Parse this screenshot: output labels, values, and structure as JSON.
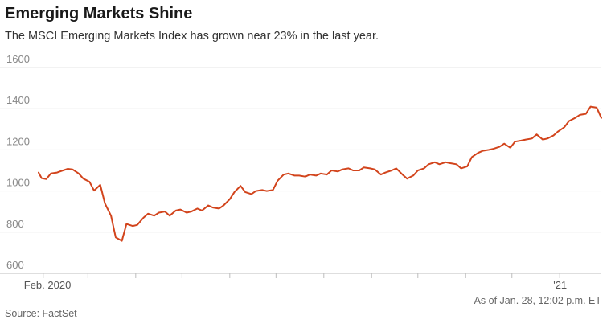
{
  "chart_data": {
    "type": "line",
    "title": "Emerging Markets Shine",
    "subtitle": "The MSCI Emerging Markets Index has grown near 23% in the last year.",
    "source": "Source: FactSet",
    "note": "As of Jan. 28, 12:02 p.m. ET",
    "ylim": [
      600,
      1600
    ],
    "yticks": [
      600,
      800,
      1000,
      1200,
      1400,
      1600
    ],
    "grid": true,
    "x_range": [
      "2020-01-29",
      "2021-01-28"
    ],
    "xtick_labels": [
      {
        "date": "2020-02-01",
        "label": "Feb. 2020"
      },
      {
        "date": "2021-01-01",
        "label": "'21"
      }
    ],
    "minor_ticks": [
      "2020-03-01",
      "2020-04-01",
      "2020-05-01",
      "2020-06-01",
      "2020-07-01",
      "2020-08-01",
      "2020-09-01",
      "2020-10-01",
      "2020-11-01",
      "2020-12-01"
    ],
    "line_color": "#d2441c",
    "series": [
      {
        "values": [
          [
            "2020-01-29",
            1090
          ],
          [
            "2020-01-31",
            1062
          ],
          [
            "2020-02-03",
            1058
          ],
          [
            "2020-02-06",
            1085
          ],
          [
            "2020-02-10",
            1090
          ],
          [
            "2020-02-13",
            1098
          ],
          [
            "2020-02-17",
            1108
          ],
          [
            "2020-02-20",
            1105
          ],
          [
            "2020-02-24",
            1085
          ],
          [
            "2020-02-27",
            1060
          ],
          [
            "2020-03-02",
            1045
          ],
          [
            "2020-03-05",
            1002
          ],
          [
            "2020-03-09",
            1030
          ],
          [
            "2020-03-12",
            940
          ],
          [
            "2020-03-16",
            880
          ],
          [
            "2020-03-19",
            775
          ],
          [
            "2020-03-23",
            758
          ],
          [
            "2020-03-26",
            840
          ],
          [
            "2020-03-30",
            830
          ],
          [
            "2020-04-02",
            835
          ],
          [
            "2020-04-06",
            870
          ],
          [
            "2020-04-09",
            890
          ],
          [
            "2020-04-13",
            880
          ],
          [
            "2020-04-16",
            895
          ],
          [
            "2020-04-20",
            900
          ],
          [
            "2020-04-23",
            880
          ],
          [
            "2020-04-27",
            905
          ],
          [
            "2020-04-30",
            910
          ],
          [
            "2020-05-04",
            895
          ],
          [
            "2020-05-07",
            900
          ],
          [
            "2020-05-11",
            915
          ],
          [
            "2020-05-14",
            905
          ],
          [
            "2020-05-18",
            930
          ],
          [
            "2020-05-21",
            920
          ],
          [
            "2020-05-25",
            915
          ],
          [
            "2020-05-28",
            930
          ],
          [
            "2020-06-01",
            960
          ],
          [
            "2020-06-04",
            995
          ],
          [
            "2020-06-08",
            1025
          ],
          [
            "2020-06-11",
            995
          ],
          [
            "2020-06-15",
            985
          ],
          [
            "2020-06-18",
            1000
          ],
          [
            "2020-06-22",
            1005
          ],
          [
            "2020-06-25",
            1000
          ],
          [
            "2020-06-29",
            1005
          ],
          [
            "2020-07-02",
            1050
          ],
          [
            "2020-07-06",
            1080
          ],
          [
            "2020-07-09",
            1085
          ],
          [
            "2020-07-13",
            1075
          ],
          [
            "2020-07-16",
            1075
          ],
          [
            "2020-07-20",
            1070
          ],
          [
            "2020-07-23",
            1080
          ],
          [
            "2020-07-27",
            1075
          ],
          [
            "2020-07-30",
            1085
          ],
          [
            "2020-08-03",
            1080
          ],
          [
            "2020-08-06",
            1100
          ],
          [
            "2020-08-10",
            1095
          ],
          [
            "2020-08-13",
            1105
          ],
          [
            "2020-08-17",
            1110
          ],
          [
            "2020-08-20",
            1100
          ],
          [
            "2020-08-24",
            1100
          ],
          [
            "2020-08-27",
            1115
          ],
          [
            "2020-08-31",
            1110
          ],
          [
            "2020-09-03",
            1105
          ],
          [
            "2020-09-07",
            1080
          ],
          [
            "2020-09-10",
            1090
          ],
          [
            "2020-09-14",
            1100
          ],
          [
            "2020-09-17",
            1110
          ],
          [
            "2020-09-21",
            1080
          ],
          [
            "2020-09-24",
            1060
          ],
          [
            "2020-09-28",
            1075
          ],
          [
            "2020-10-01",
            1100
          ],
          [
            "2020-10-05",
            1110
          ],
          [
            "2020-10-08",
            1130
          ],
          [
            "2020-10-12",
            1140
          ],
          [
            "2020-10-15",
            1130
          ],
          [
            "2020-10-19",
            1140
          ],
          [
            "2020-10-22",
            1135
          ],
          [
            "2020-10-26",
            1130
          ],
          [
            "2020-10-29",
            1110
          ],
          [
            "2020-11-02",
            1120
          ],
          [
            "2020-11-05",
            1165
          ],
          [
            "2020-11-09",
            1185
          ],
          [
            "2020-11-12",
            1195
          ],
          [
            "2020-11-16",
            1200
          ],
          [
            "2020-11-19",
            1205
          ],
          [
            "2020-11-23",
            1215
          ],
          [
            "2020-11-26",
            1230
          ],
          [
            "2020-11-30",
            1210
          ],
          [
            "2020-12-03",
            1240
          ],
          [
            "2020-12-07",
            1245
          ],
          [
            "2020-12-10",
            1250
          ],
          [
            "2020-12-14",
            1255
          ],
          [
            "2020-12-17",
            1275
          ],
          [
            "2020-12-21",
            1250
          ],
          [
            "2020-12-24",
            1255
          ],
          [
            "2020-12-28",
            1270
          ],
          [
            "2020-12-31",
            1290
          ],
          [
            "2021-01-04",
            1310
          ],
          [
            "2021-01-07",
            1340
          ],
          [
            "2021-01-11",
            1355
          ],
          [
            "2021-01-14",
            1370
          ],
          [
            "2021-01-18",
            1375
          ],
          [
            "2021-01-21",
            1410
          ],
          [
            "2021-01-25",
            1405
          ],
          [
            "2021-01-28",
            1355
          ]
        ]
      }
    ]
  }
}
